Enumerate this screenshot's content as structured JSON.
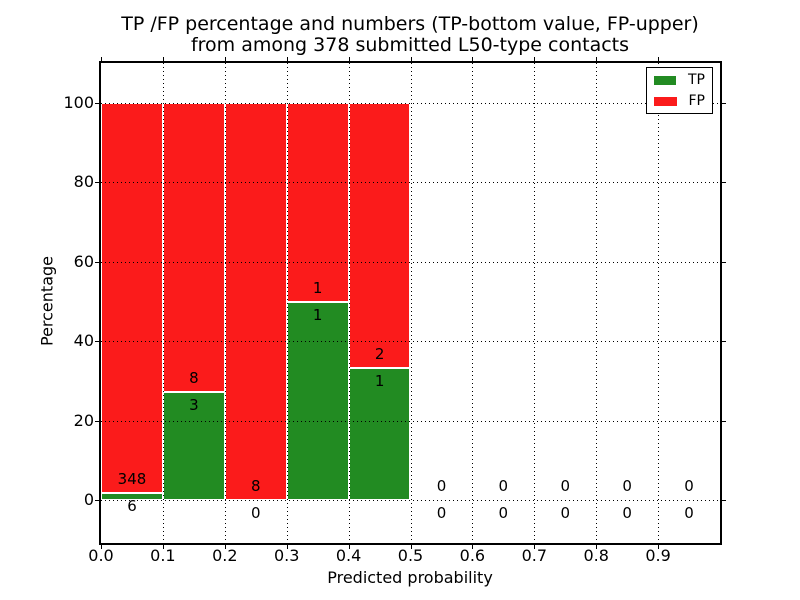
{
  "title": {
    "line1": "TP /FP percentage and numbers (TP-bottom value, FP-upper)",
    "line2": "from among 378 submitted L50-type contacts"
  },
  "axes": {
    "xlabel": "Predicted probability",
    "ylabel": "Percentage",
    "x_tick_values": [
      0,
      0.1,
      0.2,
      0.3,
      0.4,
      0.5,
      0.6,
      0.7,
      0.8,
      0.9
    ],
    "x_tick_labels": [
      "0.0",
      "0.1",
      "0.2",
      "0.3",
      "0.4",
      "0.5",
      "0.6",
      "0.7",
      "0.8",
      "0.9"
    ],
    "y_tick_values": [
      0,
      20,
      40,
      60,
      80,
      100
    ],
    "y_tick_labels": [
      "0",
      "20",
      "40",
      "60",
      "80",
      "100"
    ],
    "xlim": [
      0,
      1
    ],
    "ylim": [
      -10,
      110
    ],
    "grid": true
  },
  "legend": {
    "position": "upper right",
    "items": [
      {
        "label": "TP",
        "series": "tp"
      },
      {
        "label": "FP",
        "series": "fp"
      }
    ]
  },
  "colors": {
    "tp": "#228b22",
    "fp": "#fb1b1b",
    "grid": "#000000",
    "background": "#ffffff",
    "text": "#000000"
  },
  "chart_data": {
    "type": "bar",
    "stacked": true,
    "title": "TP /FP percentage and numbers (TP-bottom value, FP-upper)\nfrom among 378 submitted L50-type contacts",
    "xlabel": "Predicted probability",
    "ylabel": "Percentage",
    "xlim": [
      0,
      1
    ],
    "ylim": [
      -10,
      110
    ],
    "bar_width": 0.1,
    "grid": true,
    "legend_position": "upper right",
    "series": [
      {
        "name": "TP",
        "color": "#228b22"
      },
      {
        "name": "FP",
        "color": "#fb1b1b"
      }
    ],
    "bins": [
      {
        "range": [
          0.0,
          0.1
        ],
        "tp": 6,
        "fp": 348,
        "tp_pct": 1.7,
        "fp_pct": 98.3
      },
      {
        "range": [
          0.1,
          0.2
        ],
        "tp": 3,
        "fp": 8,
        "tp_pct": 27.3,
        "fp_pct": 72.7
      },
      {
        "range": [
          0.2,
          0.3
        ],
        "tp": 0,
        "fp": 8,
        "tp_pct": 0.0,
        "fp_pct": 100.0
      },
      {
        "range": [
          0.3,
          0.4
        ],
        "tp": 1,
        "fp": 1,
        "tp_pct": 50.0,
        "fp_pct": 50.0
      },
      {
        "range": [
          0.4,
          0.5
        ],
        "tp": 1,
        "fp": 2,
        "tp_pct": 33.3,
        "fp_pct": 66.7
      },
      {
        "range": [
          0.5,
          0.6
        ],
        "tp": 0,
        "fp": 0,
        "tp_pct": 0.0,
        "fp_pct": 0.0
      },
      {
        "range": [
          0.6,
          0.7
        ],
        "tp": 0,
        "fp": 0,
        "tp_pct": 0.0,
        "fp_pct": 0.0
      },
      {
        "range": [
          0.7,
          0.8
        ],
        "tp": 0,
        "fp": 0,
        "tp_pct": 0.0,
        "fp_pct": 0.0
      },
      {
        "range": [
          0.8,
          0.9
        ],
        "tp": 0,
        "fp": 0,
        "tp_pct": 0.0,
        "fp_pct": 0.0
      },
      {
        "range": [
          0.9,
          1.0
        ],
        "tp": 0,
        "fp": 0,
        "tp_pct": 0.0,
        "fp_pct": 0.0
      }
    ]
  }
}
